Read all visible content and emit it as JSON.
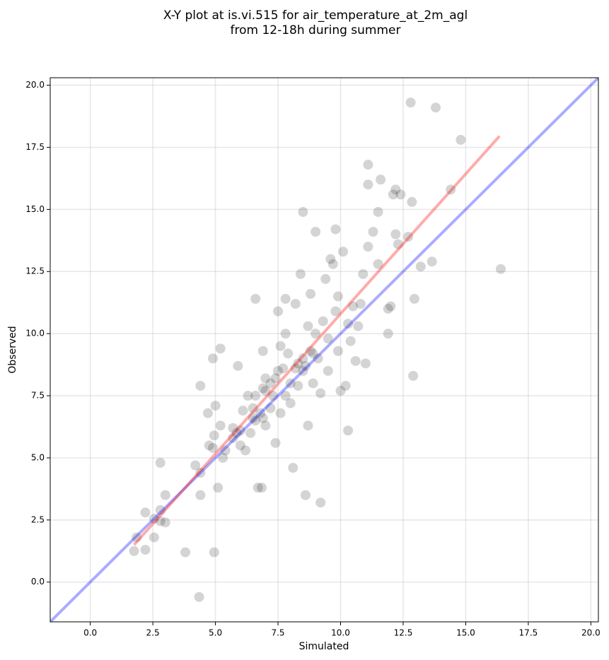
{
  "chart_data": {
    "type": "scatter",
    "title": [
      "X-Y plot at is.vi.515 for air_temperature_at_2m_agl",
      "from 12-18h during summer"
    ],
    "x_label": "Simulated",
    "y_label": "Observed",
    "xlim": [
      -1.6,
      20.3
    ],
    "ylim": [
      -1.6,
      20.3
    ],
    "xticks": [
      {
        "value": 0,
        "label": "0.0"
      },
      2.5,
      {
        "value": 5,
        "label": "5.0"
      },
      7.5,
      {
        "value": 10,
        "label": "10.0"
      },
      12.5,
      {
        "value": 15,
        "label": "15.0"
      },
      17.5,
      {
        "value": 20,
        "label": "20.0"
      }
    ],
    "yticks": [
      {
        "value": 0,
        "label": "0.0"
      },
      2.5,
      {
        "value": 5,
        "label": "5.0"
      },
      7.5,
      {
        "value": 10,
        "label": "10.0"
      },
      12.5,
      {
        "value": 15,
        "label": "15.0"
      },
      17.5,
      {
        "value": 20,
        "label": "20.0"
      }
    ],
    "grid": true,
    "series": [
      {
        "color": "#000000",
        "x": [
          1.75,
          1.85,
          2.2,
          2.2,
          2.55,
          2.55,
          2.8,
          2.8,
          2.8,
          3.0,
          3.0,
          3.8,
          4.2,
          4.35,
          4.4,
          4.4,
          4.4,
          4.7,
          4.75,
          4.9,
          4.9,
          4.95,
          4.95,
          5.0,
          5.1,
          5.2,
          5.2,
          5.3,
          5.4,
          5.7,
          5.85,
          5.9,
          6.0,
          6.1,
          6.2,
          6.3,
          6.5,
          6.6,
          6.6,
          6.7,
          6.85,
          6.9,
          6.9,
          7.0,
          7.2,
          7.3,
          7.4,
          7.5,
          7.6,
          7.7,
          7.8,
          7.8,
          8.0,
          8.1,
          8.2,
          8.3,
          8.4,
          8.5,
          8.5,
          8.6,
          8.7,
          8.8,
          8.9,
          9.0,
          9.2,
          9.2,
          9.3,
          9.4,
          9.5,
          9.6,
          9.7,
          9.8,
          9.9,
          10.0,
          10.1,
          10.3,
          10.2,
          10.4,
          10.5,
          10.6,
          10.8,
          10.9,
          11.0,
          11.1,
          11.1,
          11.1,
          11.3,
          11.5,
          11.5,
          11.6,
          11.9,
          11.9,
          12.0,
          12.1,
          12.2,
          12.2,
          12.4,
          12.3,
          12.7,
          12.8,
          12.85,
          12.9,
          12.95,
          13.2,
          13.65,
          13.8,
          14.4,
          14.8,
          16.4,
          7.0,
          7.5,
          8.0,
          8.2,
          8.5,
          7.2,
          6.8,
          6.5,
          7.8,
          8.3,
          8.8,
          9.0,
          9.5,
          9.8,
          8.6,
          7.4,
          6.6,
          6.0,
          5.7,
          7.6,
          8.9,
          9.9,
          10.3,
          10.7,
          9.1,
          8.7,
          7.9,
          7.0,
          6.4,
          6.9
        ],
        "values": [
          1.25,
          1.8,
          2.8,
          1.3,
          2.55,
          1.8,
          4.8,
          2.9,
          2.45,
          3.5,
          2.4,
          1.2,
          4.7,
          -0.6,
          3.5,
          4.4,
          7.9,
          6.8,
          5.5,
          9.0,
          5.4,
          1.2,
          5.9,
          7.1,
          3.8,
          9.4,
          6.3,
          5.0,
          5.3,
          6.2,
          6.0,
          8.7,
          5.5,
          6.9,
          5.3,
          7.5,
          7.0,
          11.4,
          6.5,
          3.8,
          3.8,
          9.3,
          7.8,
          6.3,
          8.0,
          7.5,
          5.6,
          10.9,
          9.5,
          8.6,
          10.0,
          11.4,
          7.2,
          4.6,
          11.2,
          8.8,
          12.4,
          14.9,
          8.5,
          3.5,
          6.3,
          11.6,
          9.2,
          14.1,
          3.2,
          7.6,
          10.5,
          12.2,
          8.5,
          13.0,
          12.8,
          14.2,
          11.5,
          7.7,
          13.3,
          6.1,
          7.9,
          9.7,
          11.1,
          8.9,
          11.2,
          12.4,
          8.8,
          13.5,
          16.0,
          16.8,
          14.1,
          12.8,
          14.9,
          16.2,
          10.0,
          11.0,
          11.1,
          15.6,
          14.0,
          15.8,
          15.6,
          13.6,
          13.9,
          19.3,
          15.3,
          8.3,
          11.4,
          12.7,
          12.9,
          19.1,
          15.8,
          17.8,
          12.6,
          7.7,
          8.5,
          8.0,
          8.6,
          9.0,
          7.0,
          6.8,
          6.6,
          7.5,
          7.9,
          9.3,
          10.0,
          9.8,
          10.9,
          8.7,
          8.2,
          7.5,
          6.1,
          5.8,
          6.8,
          8.0,
          9.3,
          10.4,
          10.3,
          9.0,
          10.3,
          9.2,
          8.2,
          6.0,
          6.6
        ]
      }
    ],
    "lines": [
      {
        "color": "#0000ff",
        "x": [
          -1.6,
          20.3
        ],
        "values": [
          -1.6,
          20.3
        ]
      },
      {
        "color": "#ff0000",
        "x": [
          1.75,
          16.35
        ],
        "values": [
          1.5,
          17.95
        ]
      }
    ]
  }
}
